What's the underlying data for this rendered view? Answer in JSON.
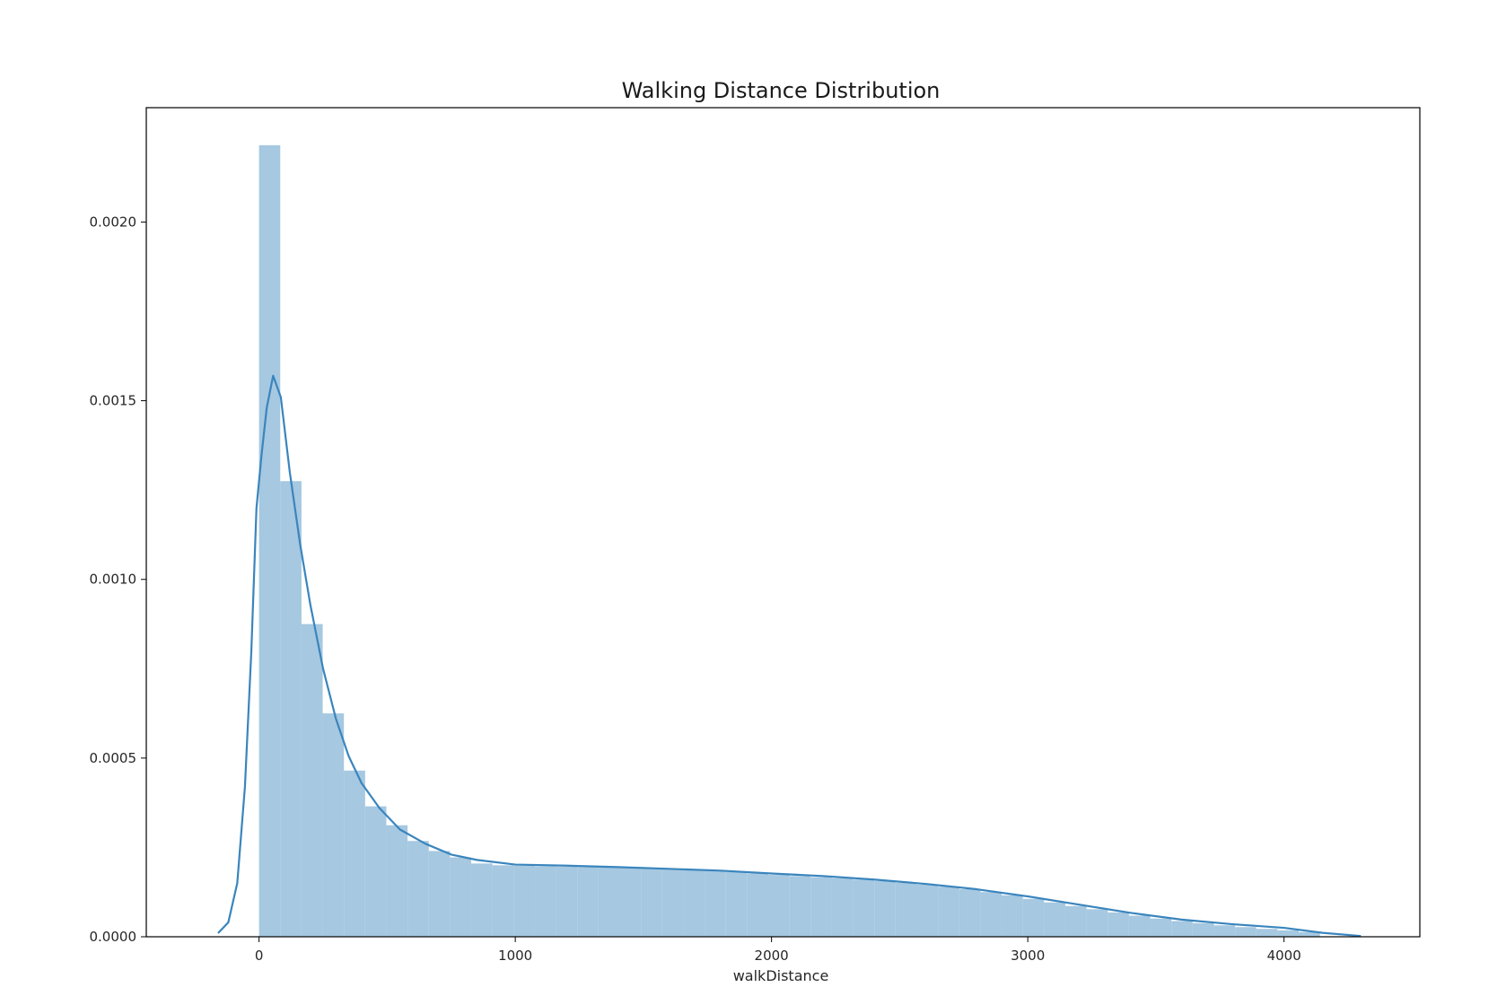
{
  "chart_data": {
    "type": "bar",
    "subtype": "histogram_with_kde",
    "title": "Walking Distance Distribution",
    "xlabel": "walkDistance",
    "ylabel": "",
    "xlim": [
      -440,
      4530
    ],
    "ylim": [
      0,
      0.00232
    ],
    "x_ticks": [
      {
        "value": 0,
        "label": "0"
      },
      {
        "value": 1000,
        "label": "1000"
      },
      {
        "value": 2000,
        "label": "2000"
      },
      {
        "value": 3000,
        "label": "3000"
      },
      {
        "value": 4000,
        "label": "4000"
      }
    ],
    "y_ticks": [
      {
        "value": 0,
        "label": "0.0000"
      },
      {
        "value": 0.0005,
        "label": "0.0005"
      },
      {
        "value": 0.001,
        "label": "0.0010"
      },
      {
        "value": 0.0015,
        "label": "0.0015"
      },
      {
        "value": 0.002,
        "label": "0.0020"
      }
    ],
    "grid": false,
    "colors": {
      "bar_fill": "#a6c8e1",
      "kde_line": "#3a85bd",
      "axes": "#000000"
    },
    "histogram": {
      "bin_width": 82.8,
      "bin_starts": [
        0,
        82.8,
        165.6,
        248.4,
        331.2,
        414,
        496.8,
        579.6,
        662.4,
        745.2,
        828,
        910.8,
        993.6,
        1076.4,
        1159.2,
        1242,
        1324.8,
        1407.6,
        1490.4,
        1573.2,
        1656,
        1738.8,
        1821.6,
        1904.4,
        1987.2,
        2070,
        2152.8,
        2235.6,
        2318.4,
        2401.2,
        2484,
        2566.8,
        2649.6,
        2732.4,
        2815.2,
        2898,
        2980.8,
        3063.6,
        3146.4,
        3229.2,
        3312,
        3394.8,
        3477.6,
        3560.4,
        3643.2,
        3726,
        3808.8,
        3891.6,
        3974.4,
        4057.2
      ],
      "values": [
        0.002215,
        0.001275,
        0.000875,
        0.000625,
        0.000465,
        0.000365,
        0.000312,
        0.000268,
        0.00024,
        0.000222,
        0.000205,
        0.0002,
        0.000199,
        0.000197,
        0.000196,
        0.000195,
        0.000194,
        0.000193,
        0.000191,
        0.000189,
        0.000187,
        0.000185,
        0.000181,
        0.000177,
        0.000173,
        0.00017,
        0.000167,
        0.000164,
        0.00016,
        0.000156,
        0.000151,
        0.000146,
        0.00014,
        0.000133,
        0.000125,
        0.000116,
        0.000106,
        9.6e-05,
        8.6e-05,
        7.7e-05,
        6.8e-05,
        5.9e-05,
        5.1e-05,
        4.4e-05,
        3.8e-05,
        3.2e-05,
        2.7e-05,
        2.2e-05,
        1.8e-05,
        1.3e-05
      ]
    },
    "kde": {
      "x": [
        -160,
        -120,
        -85,
        -55,
        -30,
        -10,
        10,
        30,
        55,
        85,
        120,
        160,
        200,
        250,
        300,
        350,
        400,
        470,
        550,
        650,
        750,
        850,
        1000,
        1200,
        1400,
        1600,
        1800,
        2000,
        2200,
        2400,
        2600,
        2800,
        3000,
        3200,
        3400,
        3600,
        3800,
        4000,
        4150,
        4300
      ],
      "y": [
        1e-05,
        4e-05,
        0.00015,
        0.00042,
        0.0008,
        0.0012,
        0.00135,
        0.00148,
        0.00157,
        0.00151,
        0.0013,
        0.0011,
        0.00093,
        0.00075,
        0.00061,
        0.000505,
        0.00043,
        0.00036,
        0.0003,
        0.00026,
        0.00023,
        0.000215,
        0.000202,
        0.000199,
        0.000195,
        0.00019,
        0.000185,
        0.000177,
        0.00017,
        0.00016,
        0.000148,
        0.000133,
        0.000113,
        9e-05,
        6.7e-05,
        4.8e-05,
        3.5e-05,
        2.5e-05,
        1.1e-05,
        2e-06
      ]
    }
  }
}
